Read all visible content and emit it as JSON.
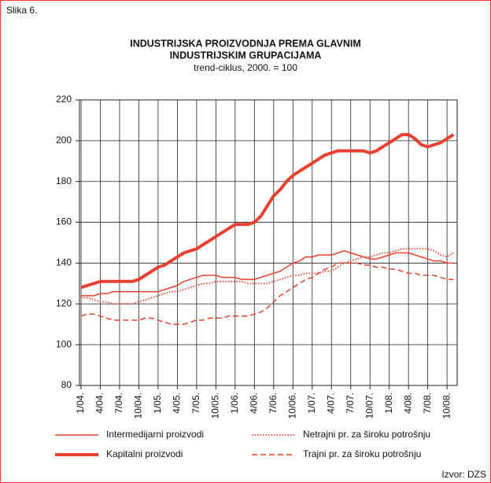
{
  "chart_data": {
    "type": "line",
    "figure_label": "Slika 6.",
    "title": [
      "INDUSTRIJSKA PROIZVODNJA PREMA GLAVNIM",
      "INDUSTRIJSKIM GRUPACIJAMA"
    ],
    "subtitle": "trend-ciklus, 2000. = 100",
    "source": "Izvor: DZS",
    "categories": [
      "1/04.",
      null,
      null,
      "4/04.",
      null,
      null,
      "7/04.",
      null,
      null,
      "10/04.",
      null,
      null,
      "1/05.",
      null,
      null,
      "4/05.",
      null,
      null,
      "7/05.",
      null,
      null,
      "10/05.",
      null,
      null,
      "1/06.",
      null,
      null,
      "4/06.",
      null,
      null,
      "7/06.",
      null,
      null,
      "10/06.",
      null,
      null,
      "1/07.",
      null,
      null,
      "4/07.",
      null,
      null,
      "7/07.",
      null,
      null,
      "10/07.",
      null,
      null,
      "1/08.",
      null,
      null,
      "4/08.",
      null,
      null,
      "7/08.",
      null,
      null,
      "10/08.",
      null
    ],
    "ylim": [
      80,
      220
    ],
    "yticks": [
      80,
      100,
      120,
      140,
      160,
      180,
      200,
      220
    ],
    "grid": true,
    "series": [
      {
        "name": "Intermedijarni proizvodi",
        "color": "#e8402e",
        "linestyle": "solid",
        "linewidth": 1.5,
        "values": [
          124,
          124,
          124,
          125,
          125,
          126,
          126,
          126,
          126,
          126,
          126,
          126,
          126,
          127,
          128,
          129,
          131,
          132,
          133,
          134,
          134,
          134,
          133,
          133,
          133,
          132,
          132,
          132,
          133,
          134,
          135,
          136,
          138,
          140,
          141,
          143,
          143,
          144,
          144,
          144,
          145,
          146,
          145,
          144,
          143,
          142,
          142,
          143,
          144,
          145,
          145,
          145,
          144,
          143,
          142,
          141,
          141,
          140,
          140
        ]
      },
      {
        "name": "Kapitalni proizvodi",
        "color": "#e8402e",
        "linestyle": "solid",
        "linewidth": 4,
        "values": [
          128,
          129,
          130,
          131,
          131,
          131,
          131,
          131,
          131,
          132,
          134,
          136,
          138,
          139,
          141,
          143,
          145,
          146,
          147,
          149,
          151,
          153,
          155,
          157,
          159,
          159,
          159,
          160,
          163,
          168,
          173,
          176,
          180,
          183,
          185,
          187,
          189,
          191,
          193,
          194,
          195,
          195,
          195,
          195,
          195,
          194,
          195,
          197,
          199,
          201,
          203,
          203,
          201,
          198,
          197,
          198,
          199,
          201,
          203
        ]
      },
      {
        "name": "Netrajni pr. za široku potrošnju",
        "color": "#e8402e",
        "linestyle": "dotted",
        "linewidth": 1.8,
        "values": [
          123,
          123,
          122,
          121,
          121,
          120,
          120,
          120,
          120,
          121,
          122,
          123,
          124,
          125,
          126,
          126,
          127,
          128,
          129,
          130,
          130,
          131,
          131,
          131,
          131,
          131,
          130,
          130,
          130,
          130,
          131,
          132,
          133,
          134,
          134,
          135,
          135,
          135,
          136,
          136,
          138,
          140,
          141,
          142,
          143,
          143,
          144,
          145,
          145,
          146,
          147,
          147,
          147,
          147,
          147,
          146,
          144,
          143,
          145
        ]
      },
      {
        "name": "Trajni pr. za široku potrošnju",
        "color": "#e8402e",
        "linestyle": "dashed",
        "linewidth": 1.5,
        "values": [
          114,
          115,
          115,
          114,
          113,
          112,
          112,
          112,
          112,
          112,
          113,
          113,
          112,
          111,
          110,
          110,
          110,
          111,
          112,
          112,
          113,
          113,
          113,
          114,
          114,
          114,
          114,
          115,
          116,
          118,
          121,
          124,
          126,
          128,
          130,
          132,
          133,
          135,
          137,
          138,
          140,
          140,
          140,
          140,
          139,
          139,
          138,
          138,
          137,
          137,
          136,
          135,
          135,
          134,
          134,
          134,
          133,
          132,
          132
        ]
      }
    ]
  }
}
